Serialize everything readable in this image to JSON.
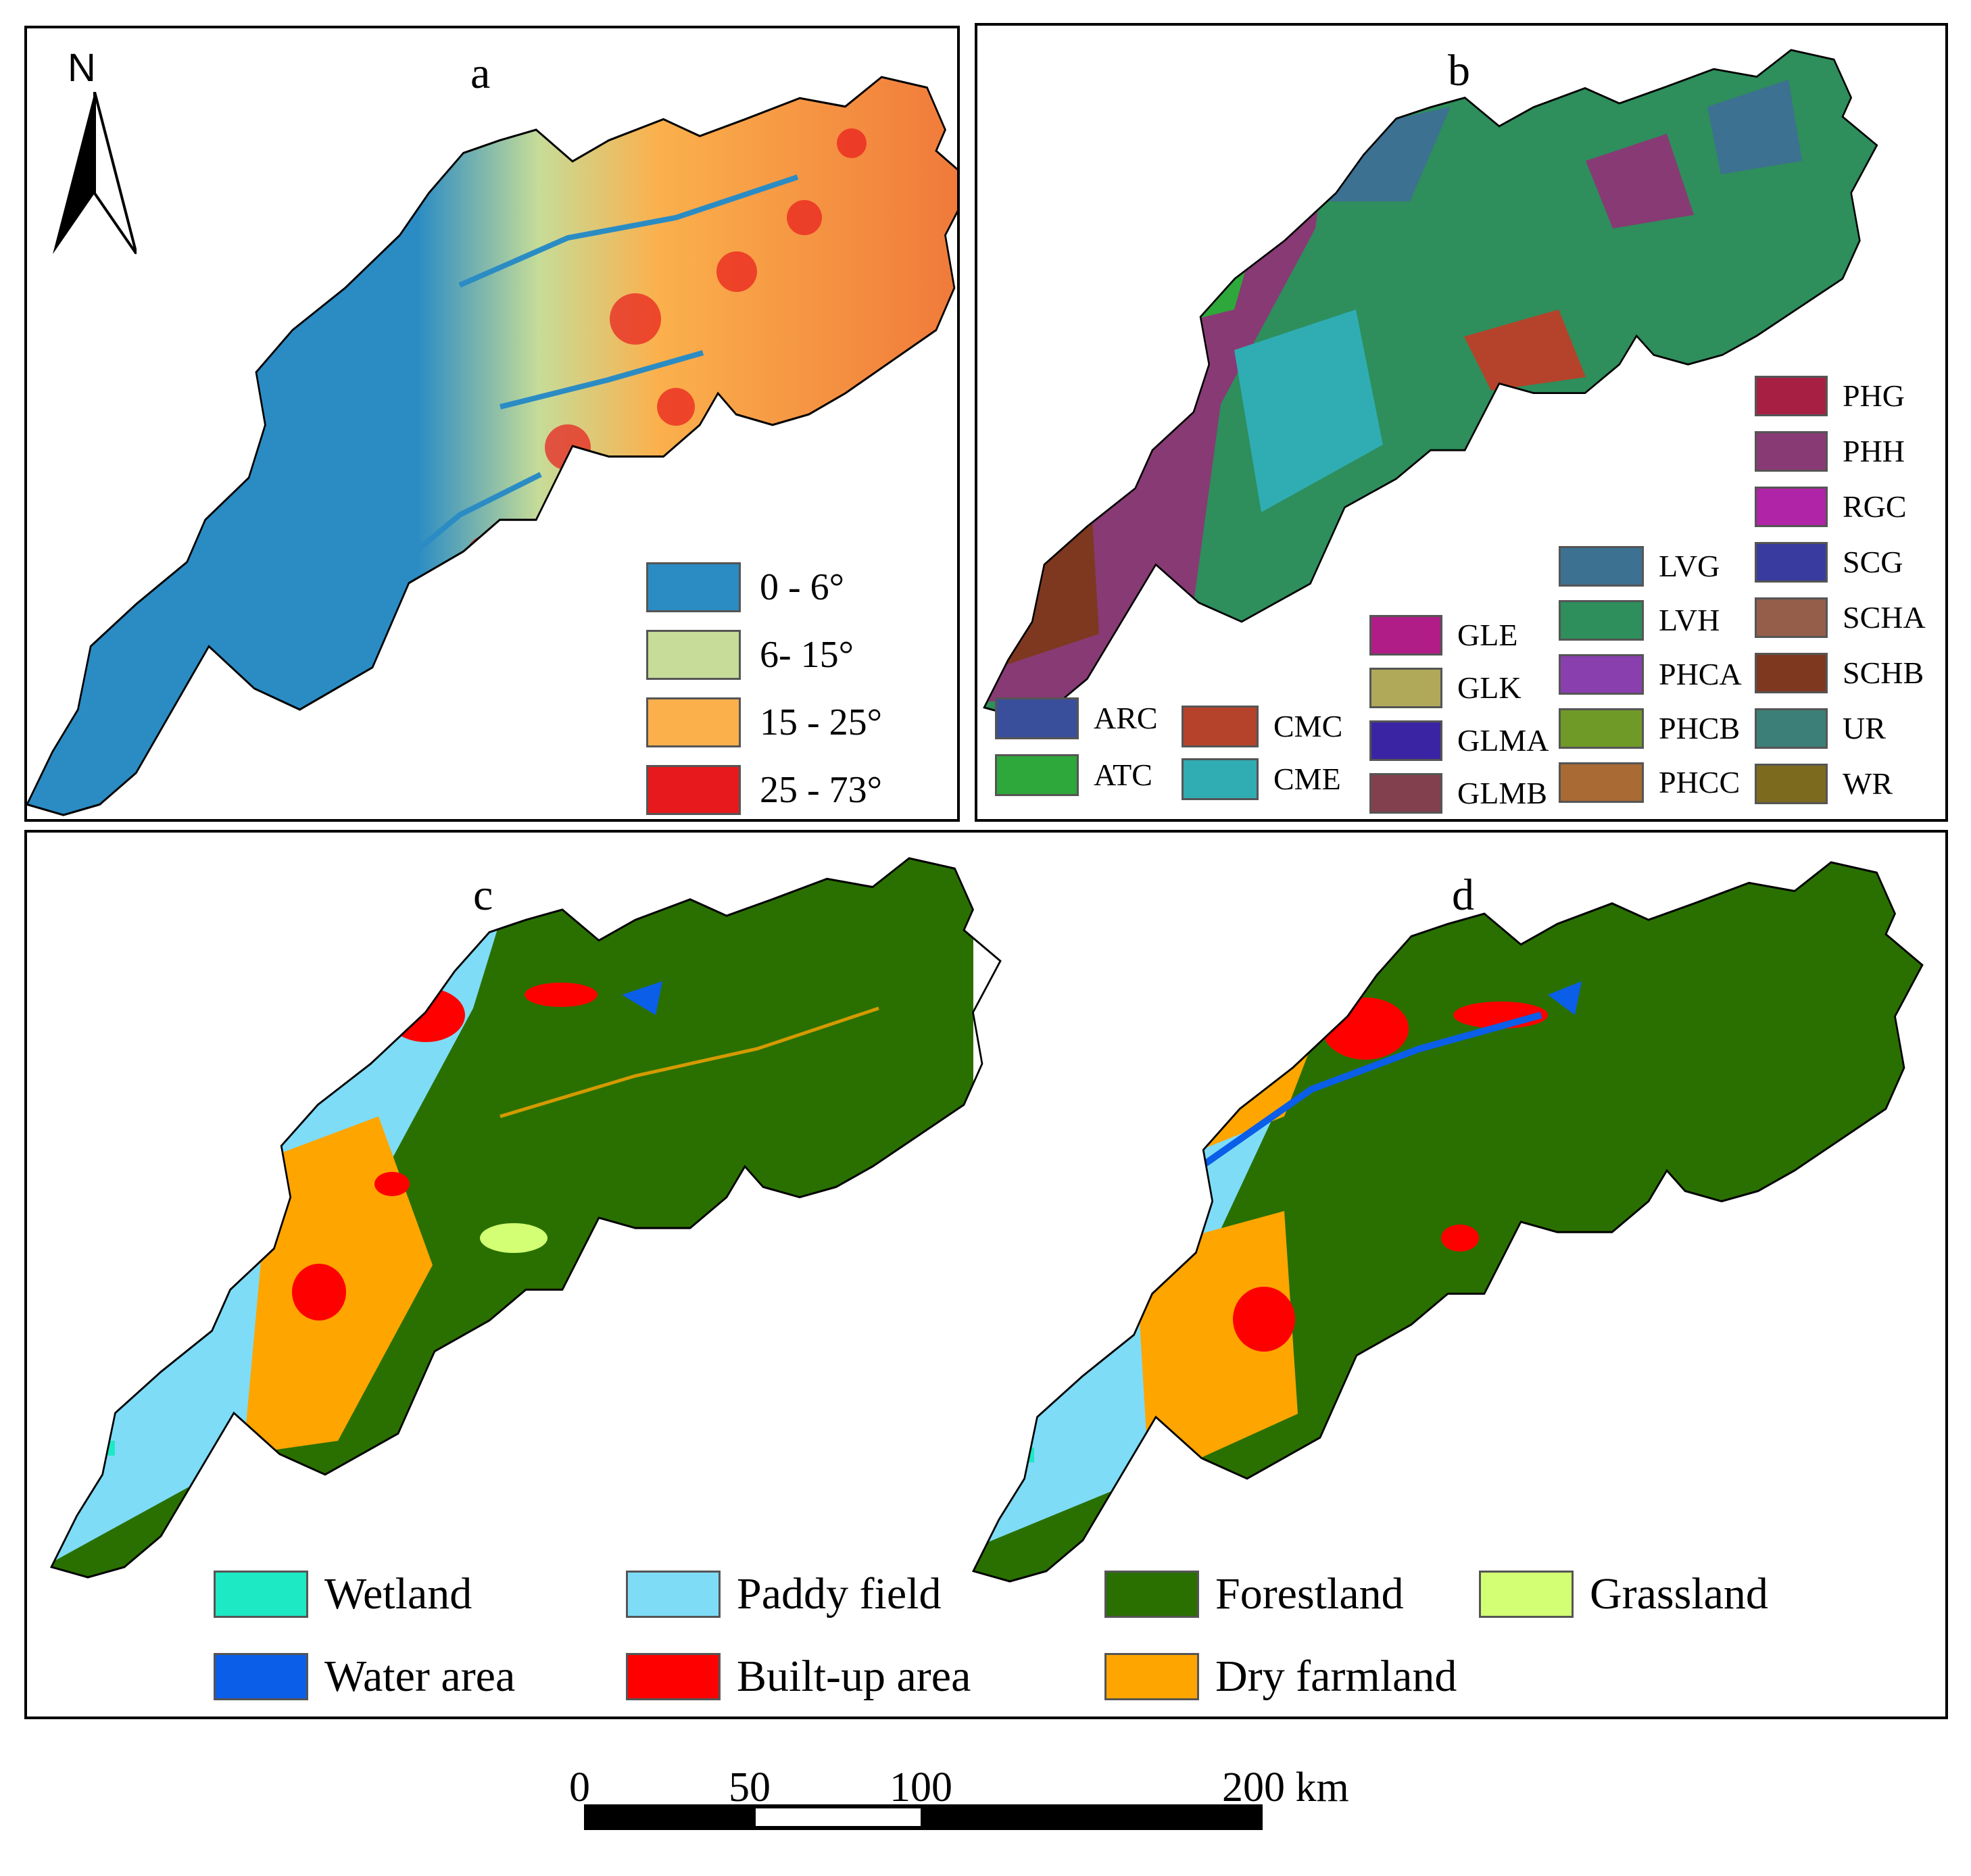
{
  "panel_a": {
    "label": "a",
    "north": "N",
    "legend": [
      {
        "label": "0 - 6°",
        "color": "#2b8cc4"
      },
      {
        "label": "6- 15°",
        "color": "#c6dc98"
      },
      {
        "label": "15 - 25°",
        "color": "#fbb04c"
      },
      {
        "label": "25 - 73°",
        "color": "#e8191c"
      }
    ]
  },
  "panel_b": {
    "label": "b",
    "legend": [
      {
        "label": "ARC",
        "color": "#3a4f9b"
      },
      {
        "label": "ATC",
        "color": "#2ea83a"
      },
      {
        "label": "CMC",
        "color": "#b5432b"
      },
      {
        "label": "CME",
        "color": "#2fadb2"
      },
      {
        "label": "GLE",
        "color": "#b01d87"
      },
      {
        "label": "GLK",
        "color": "#b1a95a"
      },
      {
        "label": "GLMA",
        "color": "#3a24a4"
      },
      {
        "label": "GLMB",
        "color": "#823f4d"
      },
      {
        "label": "LVG",
        "color": "#3c7191"
      },
      {
        "label": "LVH",
        "color": "#2e8e5c"
      },
      {
        "label": "PHCA",
        "color": "#8a3fae"
      },
      {
        "label": "PHCB",
        "color": "#6f9a28"
      },
      {
        "label": "PHCC",
        "color": "#a96a33"
      },
      {
        "label": "PHG",
        "color": "#a72044"
      },
      {
        "label": "PHH",
        "color": "#883a74"
      },
      {
        "label": "RGC",
        "color": "#b024a8"
      },
      {
        "label": "SCG",
        "color": "#393c9e"
      },
      {
        "label": "SCHA",
        "color": "#955e4a"
      },
      {
        "label": "SCHB",
        "color": "#7e3820"
      },
      {
        "label": "UR",
        "color": "#3c7f78"
      },
      {
        "label": "WR",
        "color": "#7c6a1f"
      }
    ]
  },
  "panel_c": {
    "label": "c"
  },
  "panel_d": {
    "label": "d"
  },
  "landuse_legend": [
    {
      "label": "Wetland",
      "color": "#1de9c4"
    },
    {
      "label": "Paddy field",
      "color": "#7edcf7"
    },
    {
      "label": "Forestland",
      "color": "#2a7000"
    },
    {
      "label": "Grassland",
      "color": "#d2ff73"
    },
    {
      "label": "Water area",
      "color": "#0a5ee8"
    },
    {
      "label": "Built-up area",
      "color": "#ff0000"
    },
    {
      "label": "Dry farmland",
      "color": "#ffa500"
    }
  ],
  "scale_bar": {
    "ticks": [
      "0",
      "50",
      "100",
      "200 km"
    ]
  }
}
